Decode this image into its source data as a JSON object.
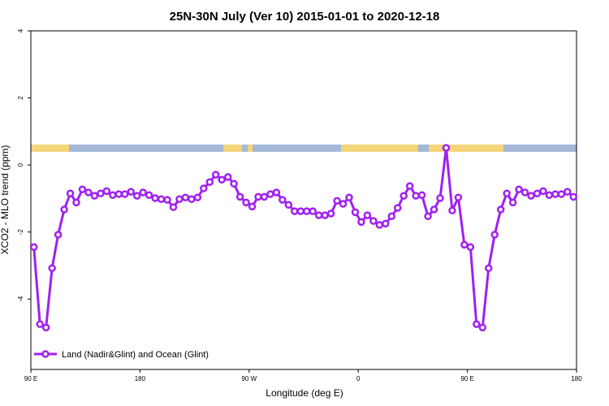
{
  "chart_data": {
    "type": "line",
    "title": "25N-30N July (Ver 10)   2015-01-01 to 2020-12-18",
    "x_label": "Longitude (deg E)",
    "y_label": "XCO2 - MLO trend (ppm)",
    "xlim": [
      90,
      540
    ],
    "xticks": [
      {
        "value": 90,
        "label": "90 E"
      },
      180,
      {
        "value": 270,
        "label": "90 W"
      },
      {
        "value": 360,
        "label": "0"
      },
      {
        "value": 450,
        "label": "90 E"
      },
      {
        "value": 540,
        "label": "180"
      }
    ],
    "ylim": [
      -6.1,
      4
    ],
    "yticks": [
      -4,
      -2,
      0,
      2,
      4
    ],
    "legend": "bottom-left",
    "x": [
      92.5,
      97.5,
      102.5,
      107.5,
      112.5,
      117.5,
      122.5,
      127.5,
      132.5,
      137.5,
      142.5,
      147.5,
      152.5,
      157.5,
      162.5,
      167.5,
      172.5,
      177.5,
      182.5,
      187.5,
      192.5,
      197.5,
      202.5,
      207.5,
      212.5,
      217.5,
      222.5,
      227.5,
      232.5,
      237.5,
      242.5,
      247.5,
      252.5,
      257.5,
      262.5,
      267.5,
      272.5,
      277.5,
      282.5,
      287.5,
      292.5,
      297.5,
      302.5,
      307.5,
      312.5,
      317.5,
      322.5,
      327.5,
      332.5,
      337.5,
      342.5,
      347.5,
      352.5,
      357.5,
      362.5,
      367.5,
      372.5,
      377.5,
      382.5,
      387.5,
      392.5,
      397.5,
      402.5,
      407.5,
      412.5,
      417.5,
      422.5,
      427.5,
      432.5,
      437.5,
      442.5,
      447.5,
      452.5,
      457.5,
      462.5,
      467.5,
      472.5,
      477.5,
      482.5,
      487.5,
      492.5,
      497.5,
      502.5,
      507.5,
      512.5,
      517.5,
      522.5,
      527.5,
      532.5,
      537.5
    ],
    "series": [
      {
        "name": "Land (Nadir&Glint) and Ocean (Glint)",
        "color": "#a020f0",
        "values": [
          -2.45,
          -4.75,
          -4.85,
          -3.08,
          -2.08,
          -1.33,
          -0.85,
          -1.12,
          -0.73,
          -0.82,
          -0.92,
          -0.85,
          -0.78,
          -0.9,
          -0.87,
          -0.87,
          -0.8,
          -0.92,
          -0.82,
          -0.9,
          -0.99,
          -1.02,
          -1.04,
          -1.26,
          -1.02,
          -0.97,
          -1.02,
          -0.97,
          -0.7,
          -0.51,
          -0.29,
          -0.44,
          -0.36,
          -0.56,
          -0.95,
          -1.12,
          -1.24,
          -0.95,
          -0.95,
          -0.87,
          -0.82,
          -1.04,
          -1.19,
          -1.38,
          -1.38,
          -1.38,
          -1.38,
          -1.5,
          -1.5,
          -1.45,
          -1.07,
          -1.16,
          -0.97,
          -1.41,
          -1.7,
          -1.5,
          -1.67,
          -1.79,
          -1.75,
          -1.53,
          -1.28,
          -0.92,
          -0.63,
          -0.92,
          -0.9,
          -1.53,
          -1.33,
          -0.99,
          0.51,
          -1.36,
          -0.97,
          -2.38,
          -2.45,
          -4.75,
          -4.85,
          -3.08,
          -2.08,
          -1.33,
          -0.85,
          -1.12,
          -0.73,
          -0.82,
          -0.92,
          -0.85,
          -0.78,
          -0.9,
          -0.87,
          -0.87,
          -0.8,
          -0.95
        ]
      }
    ]
  }
}
